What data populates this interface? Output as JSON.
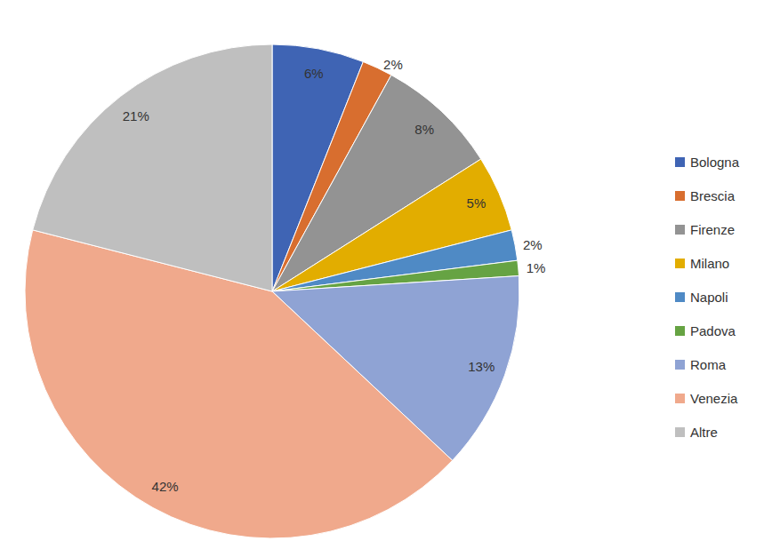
{
  "chart_data": {
    "type": "pie",
    "categories": [
      "Bologna",
      "Brescia",
      "Firenze",
      "Milano",
      "Napoli",
      "Padova",
      "Roma",
      "Venezia",
      "Altre"
    ],
    "values": [
      6,
      2,
      8,
      5,
      2,
      1,
      13,
      42,
      21
    ],
    "value_labels": [
      "6%",
      "2%",
      "8%",
      "5%",
      "2%",
      "1%",
      "13%",
      "42%",
      "21%"
    ],
    "colors": [
      "#3f64b4",
      "#d86e2f",
      "#939393",
      "#e2ad00",
      "#4f8ac5",
      "#66a343",
      "#8fa3d4",
      "#f0a98c",
      "#bfbfbf"
    ],
    "data_labels": true,
    "legend": "right"
  }
}
